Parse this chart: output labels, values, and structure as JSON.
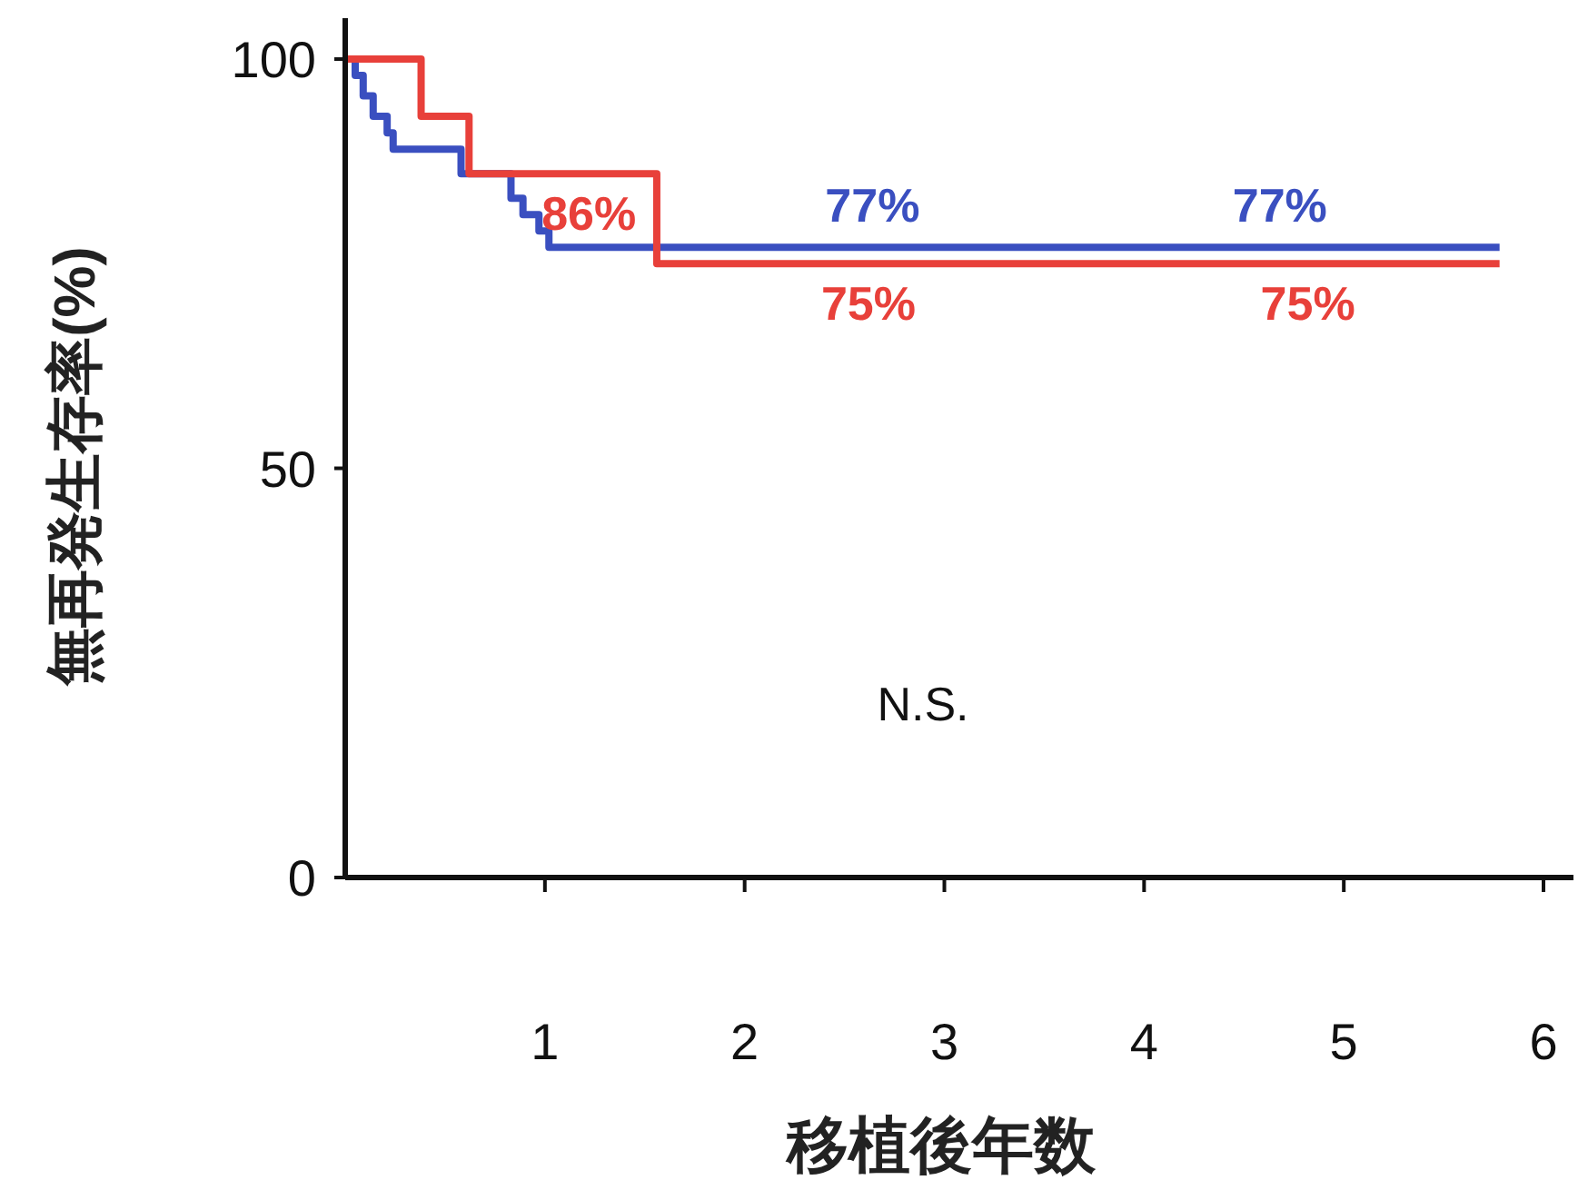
{
  "chart_data": {
    "type": "step",
    "ylabel": "無再発生存率(%)",
    "xlabel": "移植後年数",
    "xlim": [
      0,
      6.15
    ],
    "ylim": [
      0,
      105
    ],
    "xticks": [
      1,
      2,
      3,
      4,
      5,
      6
    ],
    "yticks": [
      0,
      50,
      100
    ],
    "grid": false,
    "series": [
      {
        "color": "#3a4fc0",
        "x": [
          0,
          0.05,
          0.09,
          0.14,
          0.21,
          0.24,
          0.58,
          0.83,
          0.89,
          0.97,
          1.02,
          2.64,
          4.68,
          5.78
        ],
        "values": [
          100,
          98,
          95.5,
          93,
          91,
          89,
          86,
          83,
          81,
          79,
          77,
          77,
          77,
          77
        ],
        "value_labels": [
          null,
          null,
          null,
          null,
          null,
          null,
          null,
          null,
          null,
          null,
          null,
          "77%",
          "77%",
          null
        ]
      },
      {
        "color": "#e8403a",
        "x": [
          0,
          0.38,
          0.62,
          1.22,
          1.56,
          2.62,
          4.82,
          5.78
        ],
        "values": [
          100,
          93,
          86,
          86,
          75,
          75,
          75,
          75
        ],
        "value_labels": [
          null,
          null,
          null,
          "86%",
          null,
          "75%",
          "75%",
          null
        ]
      }
    ],
    "annotations": [
      "N.S."
    ]
  }
}
